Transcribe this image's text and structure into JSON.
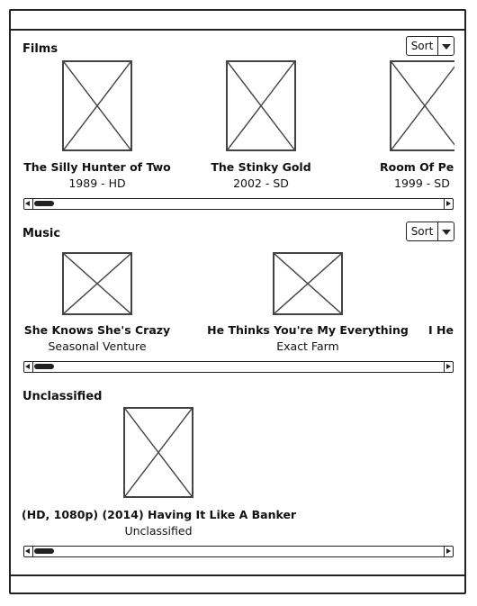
{
  "sections": {
    "films": {
      "title": "Films",
      "sort_label": "Sort",
      "items": [
        {
          "title": "The Silly Hunter of Two",
          "subtitle": "1989 - HD"
        },
        {
          "title": "The Stinky Gold",
          "subtitle": "2002 - SD"
        },
        {
          "title": "Room Of Pe",
          "subtitle": "1999 - SD"
        }
      ]
    },
    "music": {
      "title": "Music",
      "sort_label": "Sort",
      "items": [
        {
          "title": "She Knows She's Crazy",
          "subtitle": "Seasonal Venture"
        },
        {
          "title": "He Thinks You're My Everything",
          "subtitle": "Exact Farm"
        },
        {
          "title": "I He",
          "subtitle": ""
        }
      ]
    },
    "unclassified": {
      "title": "Unclassified",
      "items": [
        {
          "title": "(HD, 1080p) (2014) Having It Like A Banker",
          "subtitle": "Unclassified"
        }
      ]
    }
  },
  "icons": {
    "placeholder": "image-placeholder-icon",
    "scroll_left": "scroll-left-arrow-icon",
    "scroll_right": "scroll-right-arrow-icon",
    "dropdown": "chevron-down-icon"
  }
}
